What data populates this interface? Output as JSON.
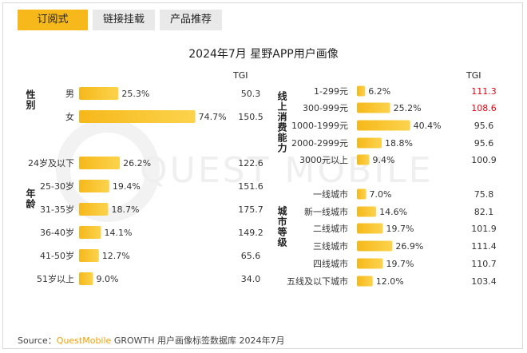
{
  "tabs": [
    {
      "label": "订阅式",
      "active": true
    },
    {
      "label": "链接挂载",
      "active": false
    },
    {
      "label": "产品推荐",
      "active": false
    }
  ],
  "watermark": "QUEST MOBILE",
  "tgi_header": "TGI",
  "source": {
    "prefix": "Source：",
    "brand": "QuestMobile",
    "suffix": "GROWTH 用户画像标签数据库 2024年7月"
  },
  "colors": {
    "bar": "#f6b81a",
    "bar_light": "#fcd34d",
    "highlight": "#e60012",
    "tab_active": "#f6b81a"
  },
  "chart_data": {
    "type": "bar",
    "title": "2024年7月 星野APP用户画像",
    "panels": [
      {
        "group": "性别",
        "categories": [
          "男",
          "女"
        ],
        "values": [
          25.3,
          74.7
        ],
        "labels": [
          "25.3%",
          "74.7%"
        ],
        "tgi": [
          "50.3",
          "150.5"
        ],
        "tgi_highlight": [
          false,
          false
        ]
      },
      {
        "group": "年龄",
        "categories": [
          "24岁及以下",
          "25-30岁",
          "31-35岁",
          "36-40岁",
          "41-50岁",
          "51岁以上"
        ],
        "values": [
          26.2,
          19.4,
          18.7,
          14.1,
          12.7,
          9.0
        ],
        "labels": [
          "26.2%",
          "19.4%",
          "18.7%",
          "14.1%",
          "12.7%",
          "9.0%"
        ],
        "tgi": [
          "122.6",
          "151.6",
          "175.7",
          "149.2",
          "65.6",
          "34.0"
        ],
        "tgi_highlight": [
          false,
          false,
          false,
          false,
          false,
          false
        ]
      },
      {
        "group": "线上消费能力",
        "categories": [
          "1-299元",
          "300-999元",
          "1000-1999元",
          "2000-2999元",
          "3000元以上"
        ],
        "values": [
          6.2,
          25.2,
          40.4,
          18.8,
          9.4
        ],
        "labels": [
          "6.2%",
          "25.2%",
          "40.4%",
          "18.8%",
          "9.4%"
        ],
        "tgi": [
          "111.3",
          "108.6",
          "95.6",
          "95.6",
          "100.9"
        ],
        "tgi_highlight": [
          true,
          true,
          false,
          false,
          false
        ]
      },
      {
        "group": "城市等级",
        "categories": [
          "一线城市",
          "新一线城市",
          "二线城市",
          "三线城市",
          "四线城市",
          "五线及以下城市"
        ],
        "values": [
          7.0,
          14.6,
          19.7,
          26.9,
          19.7,
          12.0
        ],
        "labels": [
          "7.0%",
          "14.6%",
          "19.7%",
          "26.9%",
          "19.7%",
          "12.0%"
        ],
        "tgi": [
          "75.8",
          "82.1",
          "101.9",
          "111.4",
          "110.7",
          "103.4"
        ],
        "tgi_highlight": [
          false,
          false,
          false,
          false,
          false,
          false
        ]
      }
    ]
  }
}
